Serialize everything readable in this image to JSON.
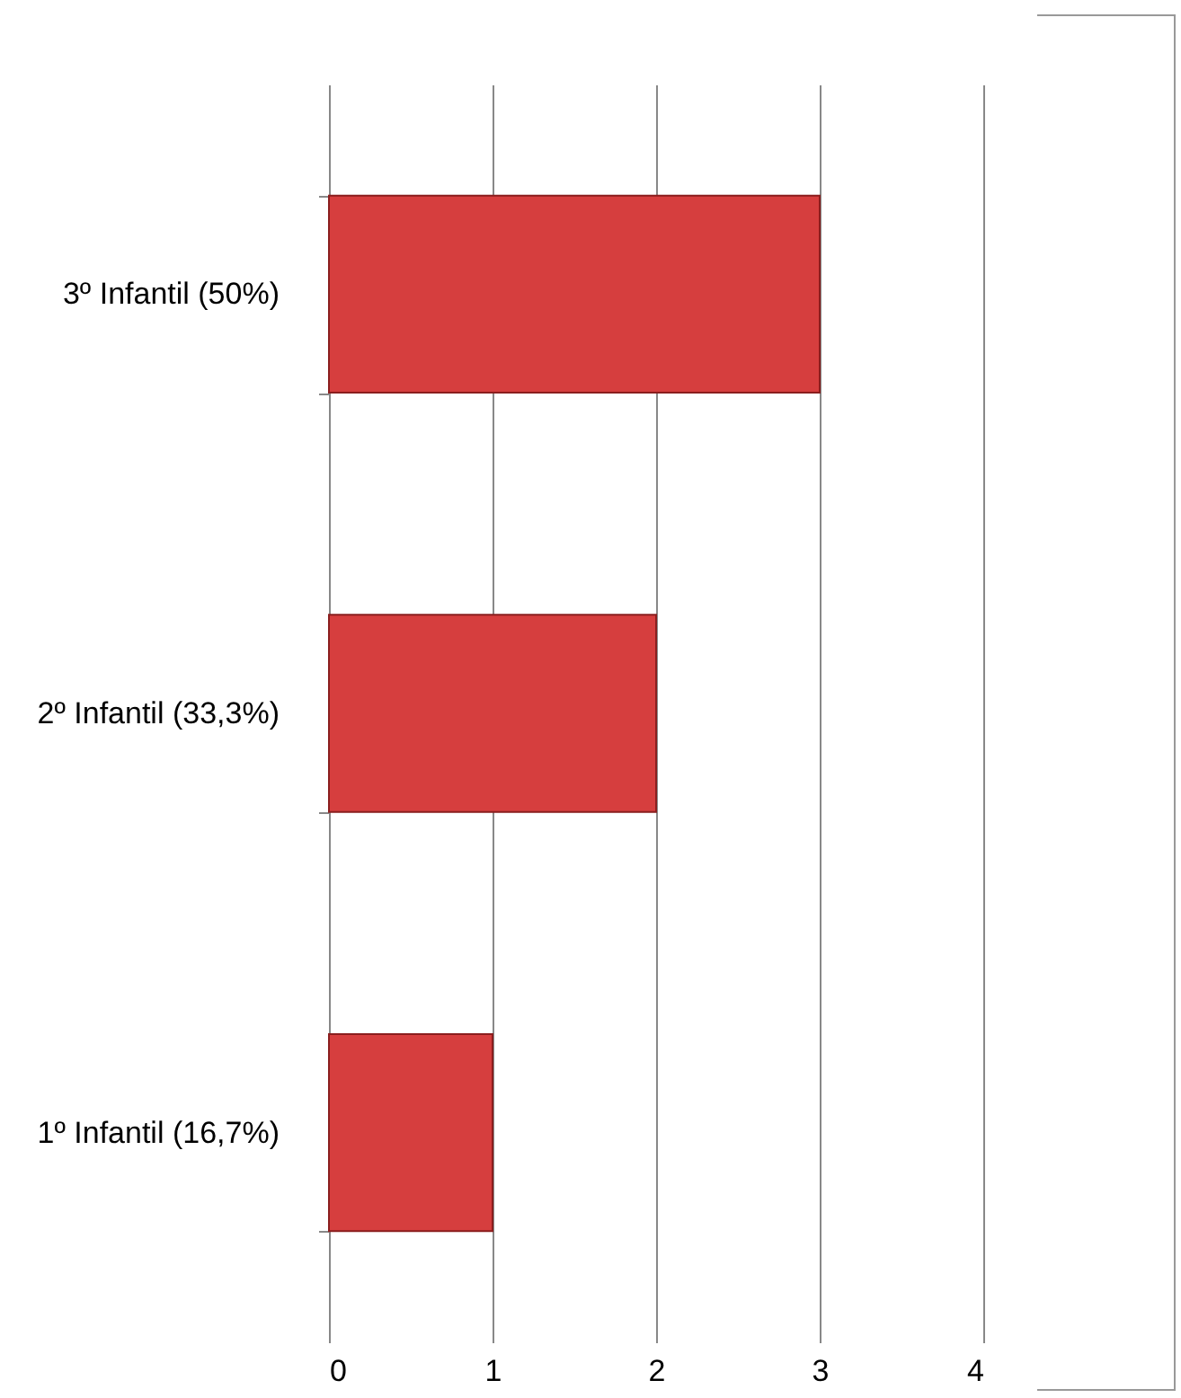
{
  "chart_data": {
    "type": "bar",
    "orientation": "horizontal",
    "categories": [
      "3º Infantil (50%)",
      "2º Infantil (33,3%)",
      "1º Infantil (16,7%)"
    ],
    "values": [
      3,
      2,
      1
    ],
    "color": "#d63e3e",
    "xlim": [
      0,
      4
    ],
    "xticks": [
      0,
      1,
      2,
      3,
      4
    ],
    "grid": "x"
  }
}
